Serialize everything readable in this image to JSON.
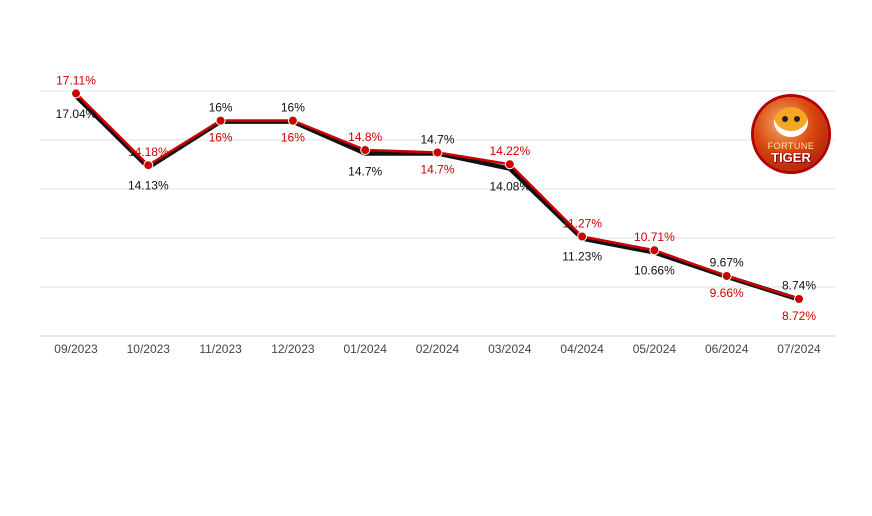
{
  "logo": {
    "brand_top": "FORTUNE",
    "brand_main": "TIGER"
  },
  "chart_data": {
    "type": "line",
    "categories": [
      "09/2023",
      "10/2023",
      "11/2023",
      "12/2023",
      "01/2024",
      "02/2024",
      "03/2024",
      "04/2024",
      "05/2024",
      "06/2024",
      "07/2024"
    ],
    "series": [
      {
        "values": [
          17.04,
          14.13,
          16,
          16,
          14.7,
          14.7,
          14.08,
          11.23,
          10.66,
          9.67,
          8.74
        ],
        "labels": [
          "17.04%",
          "14.13%",
          "16%",
          "16%",
          "14.7%",
          "14.7%",
          "14.08%",
          "11.23%",
          "10.66%",
          "9.67%",
          "8.74%"
        ],
        "color": "#111111"
      },
      {
        "values": [
          17.11,
          14.18,
          16,
          16,
          14.8,
          14.7,
          14.22,
          11.27,
          10.71,
          9.66,
          8.72
        ],
        "labels": [
          "17.11%",
          "14.18%",
          "16%",
          "16%",
          "14.8%",
          "14.7%",
          "14.22%",
          "11.27%",
          "10.71%",
          "9.66%",
          "8.72%"
        ],
        "color": "#cc0000"
      }
    ],
    "title": "",
    "xlabel": "",
    "ylabel": "",
    "ylim": [
      7.25,
      17.25
    ],
    "grid": true,
    "legend": "none"
  }
}
